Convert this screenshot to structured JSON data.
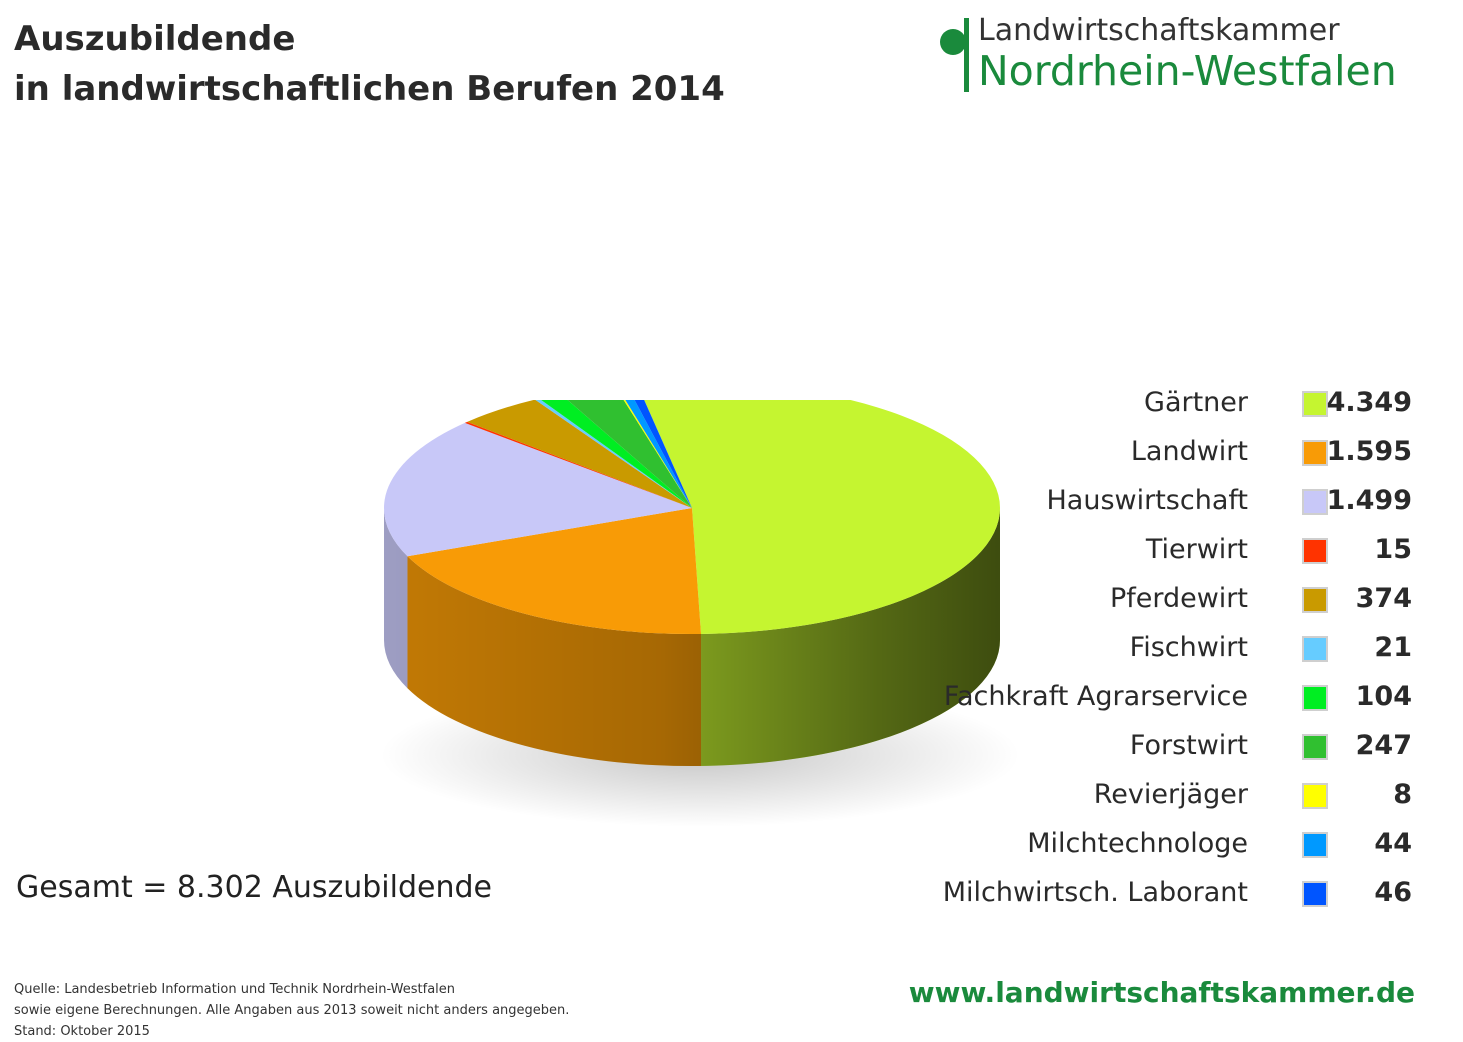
{
  "header": {
    "title_line1": "Auszubildende",
    "title_line2": "in landwirtschaftlichen Berufen 2014"
  },
  "logo": {
    "line1": "Landwirtschaftskammer",
    "line2": "Nordrhein-Westfalen",
    "color": "#1a8a3c"
  },
  "total_text": "Gesamt = 8.302 Auszubildende",
  "source": {
    "line1": "Quelle: Landesbetrieb Information und Technik Nordrhein-Westfalen",
    "line2": "sowie eigene Berechnungen. Alle Angaben aus 2013 soweit nicht anders angegeben.",
    "line3": "Stand: Oktober 2015"
  },
  "url": "www.landwirtschaftskammer.de",
  "chart_data": {
    "type": "pie",
    "title": "Auszubildende in landwirtschaftlichen Berufen 2014",
    "total": 8302,
    "legend_position": "right",
    "slices": [
      {
        "label": "Gärtner",
        "value": 4349,
        "value_text": "4.349",
        "color": "#c5f530"
      },
      {
        "label": "Landwirt",
        "value": 1595,
        "value_text": "1.595",
        "color": "#f89b06"
      },
      {
        "label": "Hauswirtschaft",
        "value": 1499,
        "value_text": "1.499",
        "color": "#c8c8f8"
      },
      {
        "label": "Tierwirt",
        "value": 15,
        "value_text": "15",
        "color": "#ff3300"
      },
      {
        "label": "Pferdewirt",
        "value": 374,
        "value_text": "374",
        "color": "#c99a00"
      },
      {
        "label": "Fischwirt",
        "value": 21,
        "value_text": "21",
        "color": "#66ccff"
      },
      {
        "label": "Fachkraft Agrarservice",
        "value": 104,
        "value_text": "104",
        "color": "#00ee22"
      },
      {
        "label": "Forstwirt",
        "value": 247,
        "value_text": "247",
        "color": "#30c030"
      },
      {
        "label": "Revierjäger",
        "value": 8,
        "value_text": "8",
        "color": "#ffff00"
      },
      {
        "label": "Milchtechnologe",
        "value": 44,
        "value_text": "44",
        "color": "#0099ff"
      },
      {
        "label": "Milchwirtsch. Laborant",
        "value": 46,
        "value_text": "46",
        "color": "#0055ff"
      }
    ]
  }
}
